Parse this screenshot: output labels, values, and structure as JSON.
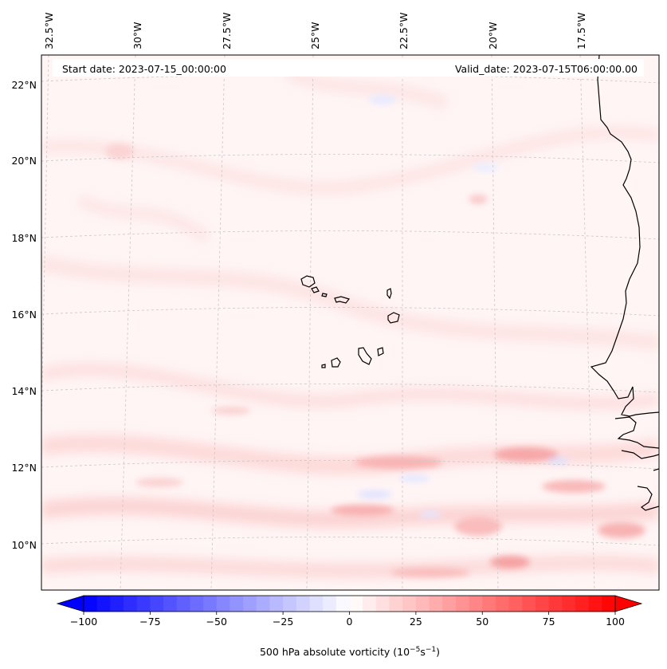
{
  "header": {
    "start_date": "Start date: 2023-07-15_00:00:00",
    "valid_date": "Valid_date: 2023-07-15T06:00:00.00"
  },
  "map": {
    "longitude_labels": [
      "32.5°W",
      "30°W",
      "27.5°W",
      "25°W",
      "22.5°W",
      "20°W",
      "17.5°W"
    ],
    "latitude_labels": [
      "22°N",
      "20°N",
      "18°N",
      "16°N",
      "14°N",
      "12°N",
      "10°N"
    ],
    "colors": {
      "coastline": "#000000",
      "gridline": "#bbbbbb",
      "background_field": "#fff4f4"
    }
  },
  "colorbar": {
    "title": "500 hPa absolute vorticity (10",
    "title_exp": "−5",
    "title_unit": "s",
    "title_exp2": "−1",
    "title_close": ")",
    "min": -100,
    "max": 100,
    "tick_values": [
      -100,
      -75,
      -50,
      -25,
      0,
      25,
      50,
      75,
      100
    ],
    "tick_labels": [
      "−100",
      "−75",
      "−50",
      "−25",
      "0",
      "25",
      "50",
      "75",
      "100"
    ],
    "colormap": "bwr",
    "extend": "both"
  }
}
